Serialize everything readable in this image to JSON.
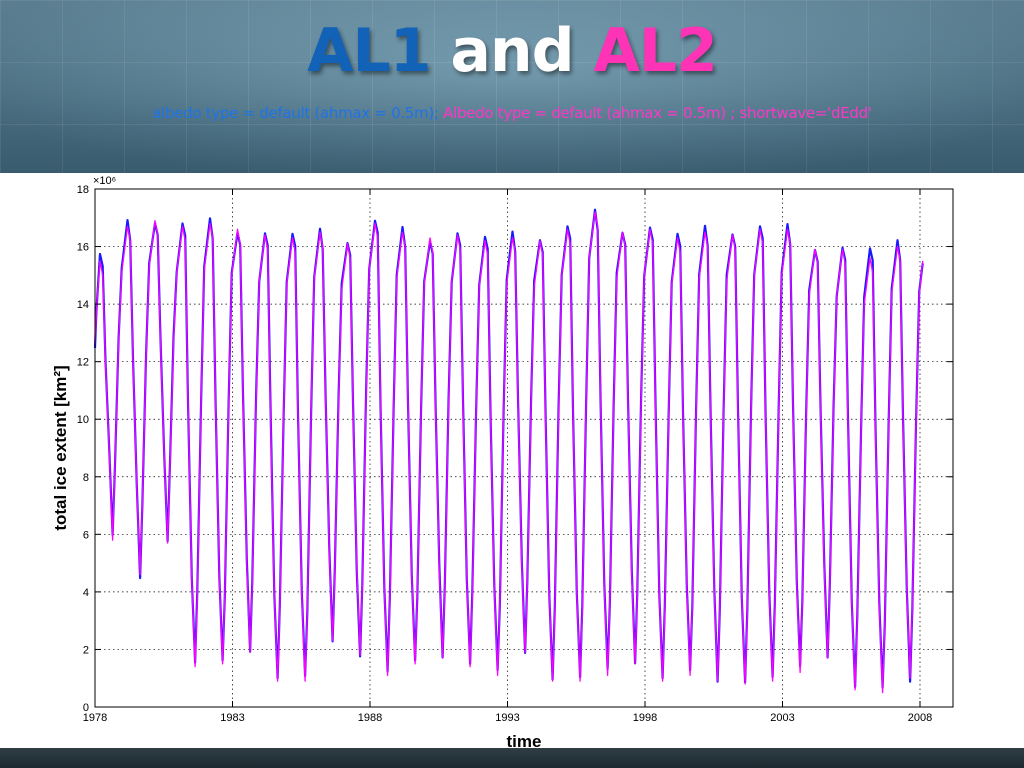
{
  "slide": {
    "title_part1": "AL1",
    "title_part2": "and",
    "title_part3": "AL2",
    "subtitle_part1": "albedo type = default (ahmax = 0.5m);",
    "subtitle_part2": "Albedo type = default (ahmax = 0.5m) ; shortwave='dEdd'"
  },
  "colors": {
    "title_blue": "#1262b8",
    "title_pink": "#ff33b5",
    "series_al1": "#1a1aff",
    "series_al2": "#ff00ff"
  },
  "chart_data": {
    "type": "line",
    "xlabel": "time",
    "ylabel": "total ice extent [km²]",
    "y_multiplier": "×10⁶",
    "xlim": [
      1978,
      2009.2
    ],
    "ylim": [
      0,
      18
    ],
    "x_ticks": [
      1978,
      1983,
      1988,
      1993,
      1998,
      2003,
      2008
    ],
    "y_ticks": [
      0,
      2,
      4,
      6,
      8,
      10,
      12,
      14,
      16,
      18
    ],
    "grid": true,
    "series": [
      {
        "color": "#1a1aff",
        "annual_max": [
          15.7,
          16.8,
          16.9,
          16.8,
          16.9,
          16.6,
          16.5,
          16.4,
          16.5,
          16.2,
          16.9,
          16.6,
          16.3,
          16.5,
          16.3,
          16.4,
          16.3,
          16.7,
          17.2,
          16.6,
          16.7,
          16.4,
          16.6,
          16.5,
          16.7,
          16.7,
          16.0,
          16.0,
          15.9,
          16.1,
          15.9
        ],
        "annual_min": [
          5.9,
          4.6,
          5.8,
          1.5,
          1.5,
          2.0,
          1.0,
          1.0,
          2.4,
          1.8,
          1.2,
          1.5,
          1.8,
          1.5,
          1.2,
          2.0,
          1.0,
          1.0,
          1.2,
          1.6,
          1.0,
          1.2,
          1.0,
          0.9,
          1.0,
          1.3,
          1.8,
          0.7,
          0.6,
          1.0
        ]
      },
      {
        "color": "#ff00ff",
        "annual_max": [
          15.5,
          16.7,
          16.9,
          16.7,
          16.8,
          16.6,
          16.4,
          16.3,
          16.5,
          16.1,
          16.8,
          16.5,
          16.3,
          16.4,
          16.2,
          16.3,
          16.2,
          16.6,
          17.2,
          16.5,
          16.6,
          16.3,
          16.5,
          16.4,
          16.6,
          16.6,
          15.9,
          15.9,
          15.6,
          16.0,
          15.9
        ],
        "annual_min": [
          5.8,
          4.6,
          5.7,
          1.4,
          1.5,
          1.9,
          0.9,
          0.9,
          2.3,
          1.8,
          1.1,
          1.5,
          1.7,
          1.4,
          1.1,
          1.9,
          0.9,
          0.9,
          1.1,
          1.5,
          0.9,
          1.1,
          0.9,
          0.8,
          0.9,
          1.2,
          1.7,
          0.6,
          0.5,
          1.0
        ]
      }
    ]
  }
}
